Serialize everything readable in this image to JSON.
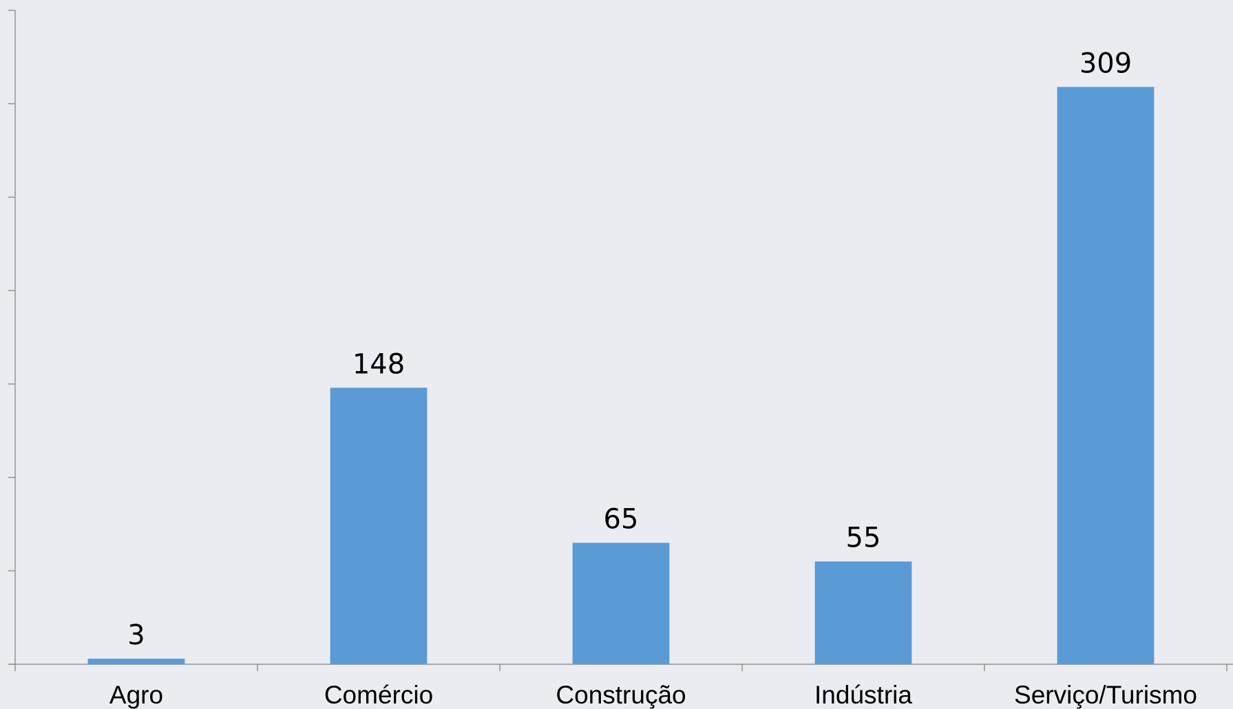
{
  "colors": {
    "background": "#ebecf2",
    "bar": "#5b9bd5",
    "axis": "#7f7f7f",
    "text": "#000000"
  },
  "chart_data": {
    "type": "bar",
    "title": "",
    "xlabel": "",
    "ylabel": "",
    "categories": [
      "Agro",
      "Comércio",
      "Construção",
      "Indústria",
      "Serviço/Turismo"
    ],
    "values": [
      3,
      148,
      65,
      55,
      309
    ],
    "data_labels": [
      "3",
      "148",
      "65",
      "55",
      "309"
    ],
    "ylim": [
      0,
      350
    ],
    "y_tick_step": 50,
    "y_tick_labels_shown": false,
    "grid": false,
    "legend": "none"
  }
}
